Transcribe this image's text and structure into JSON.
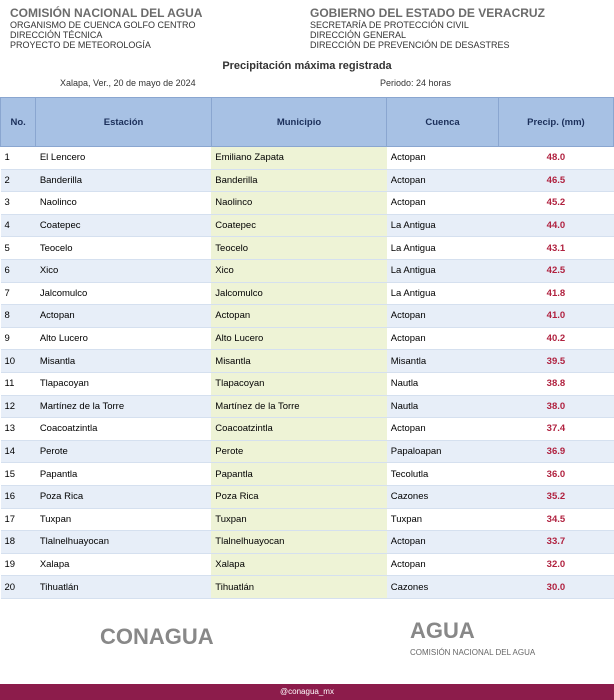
{
  "header": {
    "left_org": "COMISIÓN NACIONAL DEL AGUA",
    "left_lines": [
      "ORGANISMO DE CUENCA GOLFO CENTRO",
      "DIRECCIÓN TÉCNICA",
      "PROYECTO DE METEOROLOGÍA"
    ],
    "right_org": "GOBIERNO DEL ESTADO DE VERACRUZ",
    "right_lines": [
      "SECRETARÍA DE PROTECCIÓN CIVIL",
      "DIRECCIÓN GENERAL",
      "DIRECCIÓN DE PREVENCIÓN DE DESASTRES"
    ],
    "title": "Precipitación máxima registrada",
    "date": "Xalapa, Ver., 20 de mayo de 2024",
    "period": "Periodo: 24 horas"
  },
  "table": {
    "columns": [
      "No.",
      "Estación",
      "Municipio",
      "Cuenca",
      "Precip. (mm)"
    ],
    "rows": [
      [
        "1",
        "El Lencero",
        "Emiliano Zapata",
        "Actopan",
        "48.0"
      ],
      [
        "2",
        "Banderilla",
        "Banderilla",
        "Actopan",
        "46.5"
      ],
      [
        "3",
        "Naolinco",
        "Naolinco",
        "Actopan",
        "45.2"
      ],
      [
        "4",
        "Coatepec",
        "Coatepec",
        "La Antigua",
        "44.0"
      ],
      [
        "5",
        "Teocelo",
        "Teocelo",
        "La Antigua",
        "43.1"
      ],
      [
        "6",
        "Xico",
        "Xico",
        "La Antigua",
        "42.5"
      ],
      [
        "7",
        "Jalcomulco",
        "Jalcomulco",
        "La Antigua",
        "41.8"
      ],
      [
        "8",
        "Actopan",
        "Actopan",
        "Actopan",
        "41.0"
      ],
      [
        "9",
        "Alto Lucero",
        "Alto Lucero",
        "Actopan",
        "40.2"
      ],
      [
        "10",
        "Misantla",
        "Misantla",
        "Misantla",
        "39.5"
      ],
      [
        "11",
        "Tlapacoyan",
        "Tlapacoyan",
        "Nautla",
        "38.8"
      ],
      [
        "12",
        "Martínez de la Torre",
        "Martínez de la Torre",
        "Nautla",
        "38.0"
      ],
      [
        "13",
        "Coacoatzintla",
        "Coacoatzintla",
        "Actopan",
        "37.4"
      ],
      [
        "14",
        "Perote",
        "Perote",
        "Papaloapan",
        "36.9"
      ],
      [
        "15",
        "Papantla",
        "Papantla",
        "Tecolutla",
        "36.0"
      ],
      [
        "16",
        "Poza Rica",
        "Poza Rica",
        "Cazones",
        "35.2"
      ],
      [
        "17",
        "Tuxpan",
        "Tuxpan",
        "Tuxpan",
        "34.5"
      ],
      [
        "18",
        "Tlalnelhuayocan",
        "Tlalnelhuayocan",
        "Actopan",
        "33.7"
      ],
      [
        "19",
        "Xalapa",
        "Xalapa",
        "Actopan",
        "32.0"
      ],
      [
        "20",
        "Tihuatlán",
        "Tihuatlán",
        "Cazones",
        "30.0"
      ]
    ]
  },
  "footer": {
    "left_logo": "CONAGUA",
    "right_logo": "AGUA",
    "right_sub": "COMISIÓN NACIONAL DEL AGUA",
    "bar": "@conagua_mx"
  }
}
